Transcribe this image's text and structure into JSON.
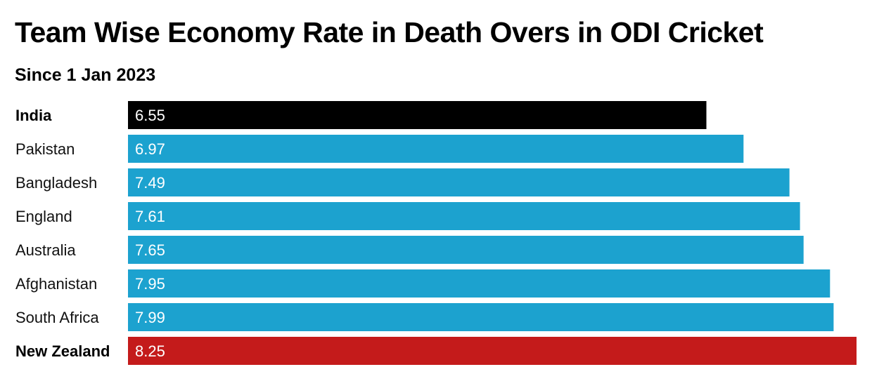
{
  "title": "Team Wise Economy Rate in Death Overs in ODI Cricket",
  "subtitle": "Since 1 Jan 2023",
  "colors": {
    "default_bar": "#1ca2cf",
    "highlight_best": "#000000",
    "highlight_worst": "#c41b1b"
  },
  "chart_data": {
    "type": "bar",
    "orientation": "horizontal",
    "categories": [
      "India",
      "Pakistan",
      "Bangladesh",
      "England",
      "Australia",
      "Afghanistan",
      "South Africa",
      "New Zealand"
    ],
    "values": [
      6.55,
      6.97,
      7.49,
      7.61,
      7.65,
      7.95,
      7.99,
      8.25
    ],
    "value_labels": [
      "6.55",
      "6.97",
      "7.49",
      "7.61",
      "7.65",
      "7.95",
      "7.99",
      "8.25"
    ],
    "bar_colors": [
      "#000000",
      "#1ca2cf",
      "#1ca2cf",
      "#1ca2cf",
      "#1ca2cf",
      "#1ca2cf",
      "#1ca2cf",
      "#c41b1b"
    ],
    "bold_categories": [
      "India",
      "New Zealand"
    ],
    "title": "Team Wise Economy Rate in Death Overs in ODI Cricket",
    "subtitle": "Since 1 Jan 2023",
    "xlabel": "",
    "ylabel": "",
    "grid": false,
    "legend": "none"
  }
}
